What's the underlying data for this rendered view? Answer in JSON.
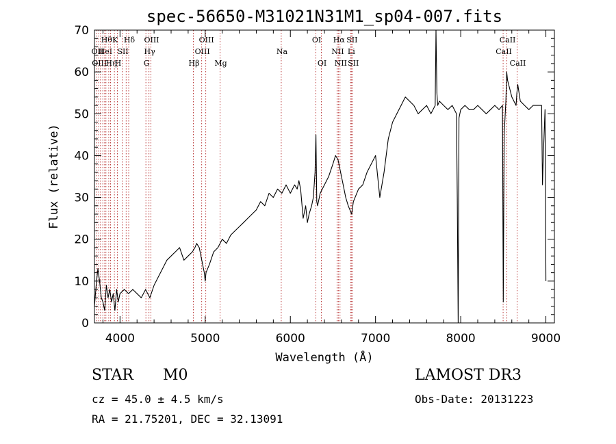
{
  "chart_data": {
    "type": "line",
    "title": "spec-56650-M31021N31M1_sp04-007.fits",
    "xlabel": "Wavelength (Å)",
    "ylabel": "Flux (relative)",
    "xlim": [
      3700,
      9100
    ],
    "ylim": [
      0,
      70
    ],
    "xticks": [
      4000,
      5000,
      6000,
      7000,
      8000,
      9000
    ],
    "yticks": [
      0,
      10,
      20,
      30,
      40,
      50,
      60,
      70
    ],
    "series": [
      {
        "name": "flux",
        "color": "#000000",
        "x": [
          3700,
          3720,
          3740,
          3760,
          3780,
          3800,
          3820,
          3840,
          3860,
          3880,
          3900,
          3920,
          3940,
          3960,
          3980,
          4000,
          4050,
          4100,
          4150,
          4200,
          4250,
          4300,
          4350,
          4400,
          4450,
          4500,
          4550,
          4600,
          4650,
          4700,
          4750,
          4800,
          4850,
          4880,
          4900,
          4930,
          4960,
          4990,
          5000,
          5010,
          5050,
          5100,
          5150,
          5200,
          5250,
          5300,
          5350,
          5400,
          5450,
          5500,
          5550,
          5600,
          5650,
          5700,
          5750,
          5800,
          5850,
          5900,
          5950,
          6000,
          6050,
          6080,
          6100,
          6120,
          6150,
          6180,
          6200,
          6220,
          6250,
          6270,
          6290,
          6300,
          6310,
          6320,
          6350,
          6400,
          6450,
          6500,
          6530,
          6560,
          6580,
          6600,
          6620,
          6650,
          6680,
          6700,
          6720,
          6740,
          6760,
          6800,
          6850,
          6900,
          6950,
          7000,
          7050,
          7100,
          7150,
          7200,
          7250,
          7300,
          7350,
          7400,
          7450,
          7500,
          7550,
          7600,
          7650,
          7700,
          7710,
          7720,
          7730,
          7750,
          7800,
          7850,
          7900,
          7950,
          7960,
          7970,
          7980,
          8000,
          8050,
          8100,
          8150,
          8200,
          8250,
          8300,
          8350,
          8400,
          8450,
          8490,
          8500,
          8510,
          8530,
          8540,
          8550,
          8600,
          8650,
          8660,
          8670,
          8700,
          8750,
          8800,
          8850,
          8900,
          8950,
          8960,
          8970,
          8990,
          9000
        ],
        "values": [
          4,
          9,
          13,
          10,
          6,
          5,
          3,
          9,
          6,
          8,
          5,
          7,
          3,
          8,
          5,
          7,
          8,
          7,
          8,
          7,
          6,
          8,
          6,
          9,
          11,
          13,
          15,
          16,
          17,
          18,
          15,
          16,
          17,
          18,
          19,
          18,
          15,
          12,
          10,
          12,
          14,
          17,
          18,
          20,
          19,
          21,
          22,
          23,
          24,
          25,
          26,
          27,
          29,
          28,
          31,
          30,
          32,
          31,
          33,
          31,
          33,
          32,
          34,
          32,
          25,
          28,
          24,
          26,
          28,
          30,
          36,
          45,
          29,
          28,
          31,
          33,
          35,
          38,
          40,
          39,
          37,
          35,
          33,
          30,
          28,
          27,
          26,
          29,
          30,
          32,
          33,
          36,
          38,
          40,
          30,
          36,
          44,
          48,
          50,
          52,
          54,
          53,
          52,
          50,
          51,
          52,
          50,
          52,
          70,
          55,
          52,
          53,
          52,
          51,
          52,
          50,
          30,
          0,
          49,
          51,
          52,
          51,
          51,
          52,
          51,
          50,
          51,
          52,
          51,
          52,
          5,
          45,
          53,
          60,
          58,
          54,
          52,
          55,
          57,
          53,
          52,
          51,
          52,
          52,
          52,
          33,
          40,
          51,
          10
        ]
      }
    ],
    "lines_label": "spectral line markers",
    "lines": [
      {
        "x": 3727,
        "label": "OII",
        "row": 2
      },
      {
        "x": 3750,
        "label": "OIII",
        "row": 3
      },
      {
        "x": 3771,
        "label": "",
        "row": 0
      },
      {
        "x": 3798,
        "label": "",
        "row": 0
      },
      {
        "x": 3820,
        "label": "HeI",
        "row": 2
      },
      {
        "x": 3835,
        "label": "Hθ",
        "row": 1
      },
      {
        "x": 3868,
        "label": "",
        "row": 0
      },
      {
        "x": 3889,
        "label": "Hη",
        "row": 3
      },
      {
        "x": 3934,
        "label": "K",
        "row": 1
      },
      {
        "x": 3969,
        "label": "H",
        "row": 3
      },
      {
        "x": 4026,
        "label": "SII",
        "row": 2
      },
      {
        "x": 4072,
        "label": "",
        "row": 0
      },
      {
        "x": 4102,
        "label": "Hδ",
        "row": 1
      },
      {
        "x": 4304,
        "label": "G",
        "row": 3
      },
      {
        "x": 4340,
        "label": "Hγ",
        "row": 2
      },
      {
        "x": 4363,
        "label": "OIII",
        "row": 1
      },
      {
        "x": 4861,
        "label": "Hβ",
        "row": 3
      },
      {
        "x": 4959,
        "label": "OIII",
        "row": 2
      },
      {
        "x": 5007,
        "label": "OIII",
        "row": 1
      },
      {
        "x": 5175,
        "label": "Mg",
        "row": 3
      },
      {
        "x": 5893,
        "label": "Na",
        "row": 2
      },
      {
        "x": 6300,
        "label": "OI",
        "row": 1
      },
      {
        "x": 6364,
        "label": "OI",
        "row": 3
      },
      {
        "x": 6548,
        "label": "NII",
        "row": 2
      },
      {
        "x": 6563,
        "label": "Hα",
        "row": 1
      },
      {
        "x": 6583,
        "label": "NII",
        "row": 3
      },
      {
        "x": 6708,
        "label": "Li",
        "row": 2
      },
      {
        "x": 6716,
        "label": "SII",
        "row": 1
      },
      {
        "x": 6731,
        "label": "SII",
        "row": 3
      },
      {
        "x": 8498,
        "label": "CaII",
        "row": 2
      },
      {
        "x": 8542,
        "label": "CaII",
        "row": 1
      },
      {
        "x": 8662,
        "label": "CaII",
        "row": 3
      }
    ]
  },
  "info": {
    "class": "STAR",
    "subclass": "M0",
    "survey": "LAMOST DR3",
    "cz": "cz = 45.0 ± 4.5 km/s",
    "obs_date": "Obs-Date: 20131223",
    "coords": "RA =  21.75201, DEC =  32.13091"
  }
}
